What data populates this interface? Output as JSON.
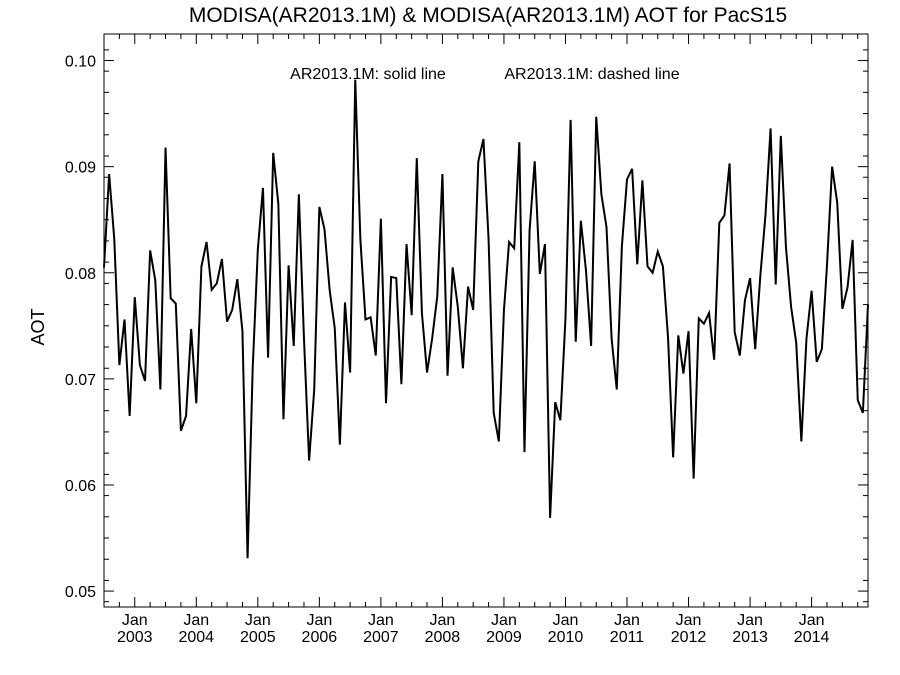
{
  "chart_data": {
    "type": "line",
    "title": "MODISA(AR2013.1M) & MODISA(AR2013.1M)  AOT for PacS15",
    "xlabel": "",
    "ylabel": "AOT",
    "ylim": [
      0.0485,
      0.1025
    ],
    "yticks": [
      0.05,
      0.06,
      0.07,
      0.08,
      0.09,
      0.1
    ],
    "ytick_labels": [
      "0.05",
      "0.06",
      "0.07",
      "0.08",
      "0.09",
      "0.10"
    ],
    "xlim": [
      "2002-07",
      "2014-12"
    ],
    "xticks": [
      {
        "date": "2003-01",
        "month": "Jan",
        "year": "2003"
      },
      {
        "date": "2004-01",
        "month": "Jan",
        "year": "2004"
      },
      {
        "date": "2005-01",
        "month": "Jan",
        "year": "2005"
      },
      {
        "date": "2006-01",
        "month": "Jan",
        "year": "2006"
      },
      {
        "date": "2007-01",
        "month": "Jan",
        "year": "2007"
      },
      {
        "date": "2008-01",
        "month": "Jan",
        "year": "2008"
      },
      {
        "date": "2009-01",
        "month": "Jan",
        "year": "2009"
      },
      {
        "date": "2010-01",
        "month": "Jan",
        "year": "2010"
      },
      {
        "date": "2011-01",
        "month": "Jan",
        "year": "2011"
      },
      {
        "date": "2012-01",
        "month": "Jan",
        "year": "2012"
      },
      {
        "date": "2013-01",
        "month": "Jan",
        "year": "2013"
      },
      {
        "date": "2014-01",
        "month": "Jan",
        "year": "2014"
      }
    ],
    "legend": {
      "solid": "AR2013.1M: solid line",
      "dashed": "AR2013.1M: dashed line",
      "placement": "top-center"
    },
    "grid": false,
    "series": [
      {
        "style": "solid",
        "color": "#000000",
        "x": [
          "2002-07",
          "2002-08",
          "2002-09",
          "2002-10",
          "2002-11",
          "2002-12",
          "2003-01",
          "2003-02",
          "2003-03",
          "2003-04",
          "2003-05",
          "2003-06",
          "2003-07",
          "2003-08",
          "2003-09",
          "2003-10",
          "2003-11",
          "2003-12",
          "2004-01",
          "2004-02",
          "2004-03",
          "2004-04",
          "2004-05",
          "2004-06",
          "2004-07",
          "2004-08",
          "2004-09",
          "2004-10",
          "2004-11",
          "2004-12",
          "2005-01",
          "2005-02",
          "2005-03",
          "2005-04",
          "2005-05",
          "2005-06",
          "2005-07",
          "2005-08",
          "2005-09",
          "2005-10",
          "2005-11",
          "2005-12",
          "2006-01",
          "2006-02",
          "2006-03",
          "2006-04",
          "2006-05",
          "2006-06",
          "2006-07",
          "2006-08",
          "2006-09",
          "2006-10",
          "2006-11",
          "2006-12",
          "2007-01",
          "2007-02",
          "2007-03",
          "2007-04",
          "2007-05",
          "2007-06",
          "2007-07",
          "2007-08",
          "2007-09",
          "2007-10",
          "2007-11",
          "2007-12",
          "2008-01",
          "2008-02",
          "2008-03",
          "2008-04",
          "2008-05",
          "2008-06",
          "2008-07",
          "2008-08",
          "2008-09",
          "2008-10",
          "2008-11",
          "2008-12",
          "2009-01",
          "2009-02",
          "2009-03",
          "2009-04",
          "2009-05",
          "2009-06",
          "2009-07",
          "2009-08",
          "2009-09",
          "2009-10",
          "2009-11",
          "2009-12",
          "2010-01",
          "2010-02",
          "2010-03",
          "2010-04",
          "2010-05",
          "2010-06",
          "2010-07",
          "2010-08",
          "2010-09",
          "2010-10",
          "2010-11",
          "2010-12",
          "2011-01",
          "2011-02",
          "2011-03",
          "2011-04",
          "2011-05",
          "2011-06",
          "2011-07",
          "2011-08",
          "2011-09",
          "2011-10",
          "2011-11",
          "2011-12",
          "2012-01",
          "2012-02",
          "2012-03",
          "2012-04",
          "2012-05",
          "2012-06",
          "2012-07",
          "2012-08",
          "2012-09",
          "2012-10",
          "2012-11",
          "2012-12",
          "2013-01",
          "2013-02",
          "2013-03",
          "2013-04",
          "2013-05",
          "2013-06",
          "2013-07",
          "2013-08",
          "2013-09",
          "2013-10",
          "2013-11",
          "2013-12",
          "2014-01",
          "2014-02",
          "2014-03",
          "2014-04",
          "2014-05",
          "2014-06",
          "2014-07",
          "2014-08",
          "2014-09",
          "2014-10",
          "2014-11",
          "2014-12"
        ],
        "values": [
          0.0805,
          0.0893,
          0.0832,
          0.0713,
          0.0756,
          0.0665,
          0.0777,
          0.0713,
          0.0698,
          0.0821,
          0.0793,
          0.069,
          0.0918,
          0.0776,
          0.0771,
          0.0651,
          0.0665,
          0.0747,
          0.0677,
          0.0806,
          0.0829,
          0.0784,
          0.079,
          0.0813,
          0.0754,
          0.0765,
          0.0794,
          0.0745,
          0.0531,
          0.071,
          0.0822,
          0.088,
          0.072,
          0.0913,
          0.0865,
          0.0662,
          0.0807,
          0.0731,
          0.0874,
          0.0738,
          0.0623,
          0.069,
          0.0862,
          0.0841,
          0.0784,
          0.0748,
          0.0638,
          0.0772,
          0.0706,
          0.0982,
          0.0831,
          0.0756,
          0.0758,
          0.0722,
          0.0851,
          0.0677,
          0.0796,
          0.0795,
          0.0695,
          0.0827,
          0.076,
          0.0908,
          0.0762,
          0.0706,
          0.0738,
          0.0778,
          0.0893,
          0.0703,
          0.0805,
          0.0768,
          0.071,
          0.0787,
          0.0765,
          0.0905,
          0.0926,
          0.0832,
          0.0668,
          0.0641,
          0.0765,
          0.0829,
          0.0823,
          0.0923,
          0.0631,
          0.084,
          0.0905,
          0.0799,
          0.0827,
          0.0569,
          0.0678,
          0.0661,
          0.0757,
          0.0944,
          0.0735,
          0.0849,
          0.0802,
          0.0731,
          0.0947,
          0.0874,
          0.0843,
          0.0738,
          0.069,
          0.0825,
          0.0888,
          0.0898,
          0.0808,
          0.0887,
          0.0806,
          0.08,
          0.082,
          0.0806,
          0.0739,
          0.0626,
          0.0741,
          0.0705,
          0.0745,
          0.0606,
          0.0757,
          0.0752,
          0.0762,
          0.0718,
          0.0847,
          0.0854,
          0.0903,
          0.0744,
          0.0722,
          0.0774,
          0.0795,
          0.0728,
          0.0797,
          0.0854,
          0.0936,
          0.0789,
          0.0929,
          0.0824,
          0.0768,
          0.0734,
          0.0641,
          0.0738,
          0.0783,
          0.0716,
          0.0728,
          0.0807,
          0.09,
          0.0866,
          0.0766,
          0.0786,
          0.0831,
          0.068,
          0.0668,
          0.077
        ]
      }
    ]
  }
}
